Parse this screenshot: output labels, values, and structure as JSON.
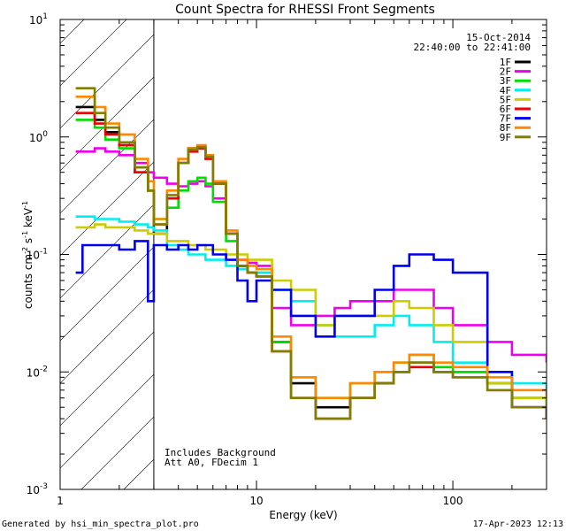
{
  "chart_data": {
    "type": "line",
    "title": "Count Spectra for RHESSI Front Segments",
    "xlabel": "Energy (keV)",
    "ylabel_base": "counts cm",
    "ylabel_sup1": "-2",
    "ylabel_mid": " s",
    "ylabel_sup2": "-1",
    "ylabel_end": " keV",
    "ylabel_sup3": "-1",
    "xscale": "log",
    "yscale": "log",
    "xlim": [
      1,
      300
    ],
    "ylim": [
      0.001,
      10
    ],
    "x_ticks": [
      {
        "value": 1,
        "label": "1"
      },
      {
        "value": 10,
        "label": "10"
      },
      {
        "value": 100,
        "label": "100"
      }
    ],
    "y_ticks": [
      {
        "value": 0.001,
        "base": "10",
        "exp": "-3"
      },
      {
        "value": 0.01,
        "base": "10",
        "exp": "-2"
      },
      {
        "value": 0.1,
        "base": "10",
        "exp": "-1"
      },
      {
        "value": 1,
        "base": "10",
        "exp": "0"
      },
      {
        "value": 10,
        "base": "10",
        "exp": "1"
      }
    ],
    "hatched_region_max_keV": 3,
    "date": "15-Oct-2014",
    "time_range": "22:40:00 to 22:41:00",
    "notes": [
      "Includes Background",
      "Att A0, FDecim 1"
    ],
    "series": [
      {
        "name": "1F",
        "color": "#000000",
        "x": [
          1.2,
          1.5,
          1.7,
          2,
          2.4,
          2.8,
          3,
          3.5,
          4,
          4.5,
          5,
          5.5,
          6,
          7,
          8,
          9,
          10,
          12,
          15,
          20,
          25,
          30,
          40,
          50,
          60,
          80,
          100,
          150,
          200,
          300
        ],
        "y": [
          1.8,
          1.4,
          1.1,
          0.9,
          0.55,
          0.35,
          0.15,
          0.3,
          0.6,
          0.8,
          0.8,
          0.7,
          0.4,
          0.15,
          0.08,
          0.07,
          0.065,
          0.018,
          0.008,
          0.005,
          0.005,
          0.006,
          0.008,
          0.01,
          0.012,
          0.01,
          0.01,
          0.008,
          0.006,
          0.005
        ]
      },
      {
        "name": "2F",
        "color": "#ee00ee",
        "x": [
          1.2,
          1.5,
          1.7,
          2,
          2.4,
          2.8,
          3,
          3.5,
          4,
          4.5,
          5,
          5.5,
          6,
          7,
          8,
          9,
          10,
          12,
          15,
          20,
          25,
          30,
          40,
          50,
          60,
          80,
          100,
          150,
          200,
          300
        ],
        "y": [
          0.75,
          0.8,
          0.75,
          0.7,
          0.6,
          0.5,
          0.45,
          0.4,
          0.38,
          0.4,
          0.42,
          0.38,
          0.3,
          0.15,
          0.09,
          0.085,
          0.08,
          0.035,
          0.025,
          0.03,
          0.035,
          0.04,
          0.04,
          0.05,
          0.05,
          0.035,
          0.025,
          0.018,
          0.014,
          0.012
        ]
      },
      {
        "name": "3F",
        "color": "#00dd00",
        "x": [
          1.2,
          1.5,
          1.7,
          2,
          2.4,
          2.8,
          3,
          3.5,
          4,
          4.5,
          5,
          5.5,
          6,
          7,
          8,
          9,
          10,
          12,
          15,
          20,
          25,
          30,
          40,
          50,
          60,
          80,
          100,
          150,
          200,
          300
        ],
        "y": [
          1.4,
          1.2,
          0.95,
          0.8,
          0.5,
          0.35,
          0.2,
          0.25,
          0.35,
          0.42,
          0.45,
          0.4,
          0.28,
          0.13,
          0.08,
          0.07,
          0.07,
          0.018,
          0.009,
          0.006,
          0.006,
          0.008,
          0.01,
          0.012,
          0.014,
          0.011,
          0.01,
          0.008,
          0.006,
          0.005
        ]
      },
      {
        "name": "4F",
        "color": "#00eeee",
        "x": [
          1.2,
          1.5,
          1.7,
          2,
          2.4,
          2.8,
          3,
          3.5,
          4,
          4.5,
          5,
          5.5,
          6,
          7,
          8,
          9,
          10,
          12,
          15,
          20,
          25,
          30,
          40,
          50,
          60,
          80,
          100,
          150,
          200,
          300
        ],
        "y": [
          0.21,
          0.2,
          0.2,
          0.19,
          0.18,
          0.17,
          0.16,
          0.12,
          0.11,
          0.1,
          0.1,
          0.09,
          0.09,
          0.08,
          0.075,
          0.07,
          0.07,
          0.05,
          0.04,
          0.025,
          0.02,
          0.02,
          0.025,
          0.03,
          0.025,
          0.018,
          0.012,
          0.01,
          0.008,
          0.007
        ]
      },
      {
        "name": "5F",
        "color": "#cccc00",
        "x": [
          1.2,
          1.5,
          1.7,
          2,
          2.4,
          2.8,
          3,
          3.5,
          4,
          4.5,
          5,
          5.5,
          6,
          7,
          8,
          9,
          10,
          12,
          15,
          20,
          25,
          30,
          40,
          50,
          60,
          80,
          100,
          150,
          200,
          300
        ],
        "y": [
          0.17,
          0.18,
          0.17,
          0.17,
          0.16,
          0.15,
          0.15,
          0.13,
          0.13,
          0.12,
          0.12,
          0.11,
          0.11,
          0.1,
          0.1,
          0.09,
          0.09,
          0.06,
          0.05,
          0.025,
          0.03,
          0.03,
          0.03,
          0.04,
          0.035,
          0.025,
          0.018,
          0.008,
          0.006,
          0.005
        ]
      },
      {
        "name": "6F",
        "color": "#ee0000",
        "x": [
          1.2,
          1.5,
          1.7,
          2,
          2.4,
          2.8,
          3,
          3.5,
          4,
          4.5,
          5,
          5.5,
          6,
          7,
          8,
          9,
          10,
          12,
          15,
          20,
          25,
          30,
          40,
          50,
          60,
          80,
          100,
          150,
          200,
          300
        ],
        "y": [
          1.6,
          1.3,
          1.05,
          0.85,
          0.5,
          0.35,
          0.18,
          0.3,
          0.6,
          0.75,
          0.8,
          0.65,
          0.4,
          0.15,
          0.08,
          0.07,
          0.065,
          0.015,
          0.006,
          0.004,
          0.004,
          0.006,
          0.008,
          0.01,
          0.011,
          0.01,
          0.009,
          0.007,
          0.005,
          0.004
        ]
      },
      {
        "name": "7F",
        "color": "#0000ee",
        "x": [
          1.2,
          1.3,
          1.5,
          1.7,
          2,
          2.4,
          2.8,
          3,
          3.5,
          4,
          4.5,
          5,
          5.5,
          6,
          7,
          8,
          9,
          10,
          12,
          15,
          20,
          25,
          30,
          40,
          50,
          60,
          80,
          100,
          150,
          200,
          300
        ],
        "y": [
          0.07,
          0.12,
          0.12,
          0.12,
          0.11,
          0.13,
          0.04,
          0.12,
          0.11,
          0.12,
          0.11,
          0.12,
          0.12,
          0.1,
          0.09,
          0.06,
          0.04,
          0.06,
          0.05,
          0.03,
          0.02,
          0.03,
          0.03,
          0.05,
          0.08,
          0.1,
          0.09,
          0.07,
          0.01,
          0.005,
          0.004
        ]
      },
      {
        "name": "8F",
        "color": "#ff8800",
        "x": [
          1.2,
          1.5,
          1.7,
          2,
          2.4,
          2.8,
          3,
          3.5,
          4,
          4.5,
          5,
          5.5,
          6,
          7,
          8,
          9,
          10,
          12,
          15,
          20,
          25,
          30,
          40,
          50,
          60,
          80,
          100,
          150,
          200,
          300
        ],
        "y": [
          2.2,
          1.8,
          1.3,
          1.05,
          0.65,
          0.42,
          0.2,
          0.35,
          0.65,
          0.8,
          0.85,
          0.7,
          0.42,
          0.16,
          0.09,
          0.08,
          0.075,
          0.02,
          0.009,
          0.006,
          0.006,
          0.008,
          0.01,
          0.012,
          0.014,
          0.012,
          0.011,
          0.009,
          0.007,
          0.006
        ]
      },
      {
        "name": "9F",
        "color": "#808000",
        "x": [
          1.2,
          1.5,
          1.7,
          2,
          2.4,
          2.8,
          3,
          3.5,
          4,
          4.5,
          5,
          5.5,
          6,
          7,
          8,
          9,
          10,
          12,
          15,
          20,
          25,
          30,
          40,
          50,
          60,
          80,
          100,
          150,
          200,
          300
        ],
        "y": [
          2.6,
          1.6,
          1.2,
          0.9,
          0.55,
          0.35,
          0.18,
          0.32,
          0.6,
          0.78,
          0.82,
          0.68,
          0.4,
          0.15,
          0.08,
          0.07,
          0.065,
          0.015,
          0.006,
          0.004,
          0.004,
          0.006,
          0.008,
          0.01,
          0.012,
          0.01,
          0.009,
          0.007,
          0.005,
          0.004
        ]
      }
    ]
  },
  "footer": {
    "generated_by": "Generated by hsi_min_spectra_plot.pro",
    "timestamp": "17-Apr-2023 12:13"
  }
}
